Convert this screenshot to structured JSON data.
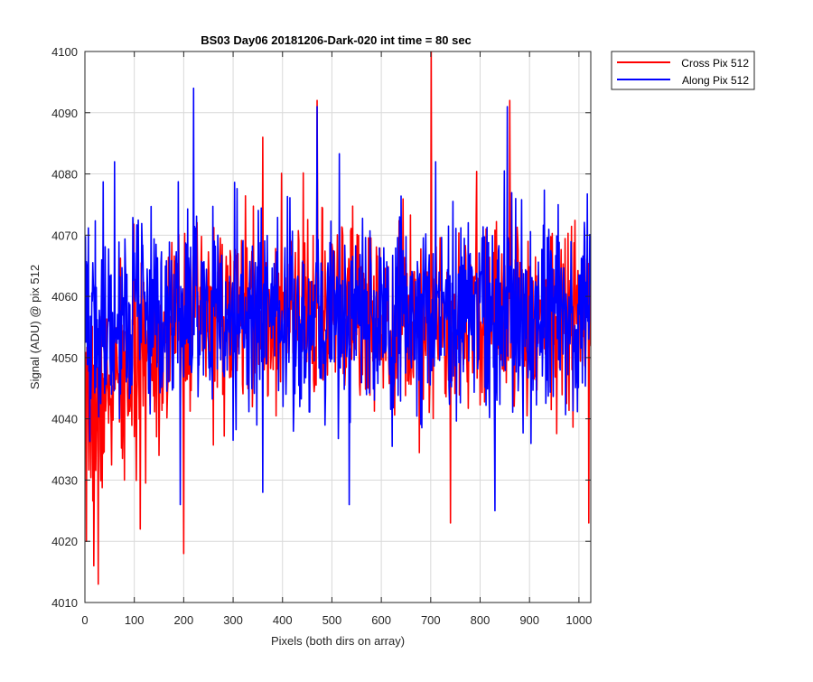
{
  "chart_data": {
    "type": "line",
    "title": "BS03 Day06 20181206-Dark-020 int time = 80 sec",
    "xlabel": "Pixels (both dirs on array)",
    "ylabel": "Signal (ADU) @ pix 512",
    "xlim": [
      0,
      1024
    ],
    "ylim": [
      4010,
      4100
    ],
    "xticks": [
      0,
      100,
      200,
      300,
      400,
      500,
      600,
      700,
      800,
      900,
      1000
    ],
    "yticks": [
      4010,
      4020,
      4030,
      4040,
      4050,
      4060,
      4070,
      4080,
      4090,
      4100
    ],
    "grid": true,
    "legend_position": "outside-top-right",
    "series": [
      {
        "name": "Cross Pix 512",
        "color": "#ff0000",
        "x_range": [
          1,
          1024
        ],
        "baseline_start": 4040,
        "baseline_mid": 4057,
        "noise_amplitude": 10,
        "seed": 7,
        "extremes": [
          {
            "x": 3,
            "y": 4020
          },
          {
            "x": 18,
            "y": 4016
          },
          {
            "x": 27,
            "y": 4013
          },
          {
            "x": 80,
            "y": 4030
          },
          {
            "x": 112,
            "y": 4022
          },
          {
            "x": 200,
            "y": 4018
          },
          {
            "x": 360,
            "y": 4086
          },
          {
            "x": 470,
            "y": 4092
          },
          {
            "x": 701,
            "y": 4100
          },
          {
            "x": 740,
            "y": 4023
          },
          {
            "x": 860,
            "y": 4092
          },
          {
            "x": 1020,
            "y": 4023
          }
        ]
      },
      {
        "name": "Along Pix 512",
        "color": "#0000ff",
        "x_range": [
          1,
          1024
        ],
        "baseline_start": 4056,
        "baseline_mid": 4057,
        "noise_amplitude": 11,
        "seed": 19,
        "extremes": [
          {
            "x": 220,
            "y": 4094
          },
          {
            "x": 470,
            "y": 4091
          },
          {
            "x": 855,
            "y": 4091
          },
          {
            "x": 360,
            "y": 4028
          },
          {
            "x": 535,
            "y": 4026
          },
          {
            "x": 830,
            "y": 4025
          },
          {
            "x": 193,
            "y": 4026
          },
          {
            "x": 60,
            "y": 4082
          },
          {
            "x": 710,
            "y": 4082
          }
        ]
      }
    ]
  }
}
